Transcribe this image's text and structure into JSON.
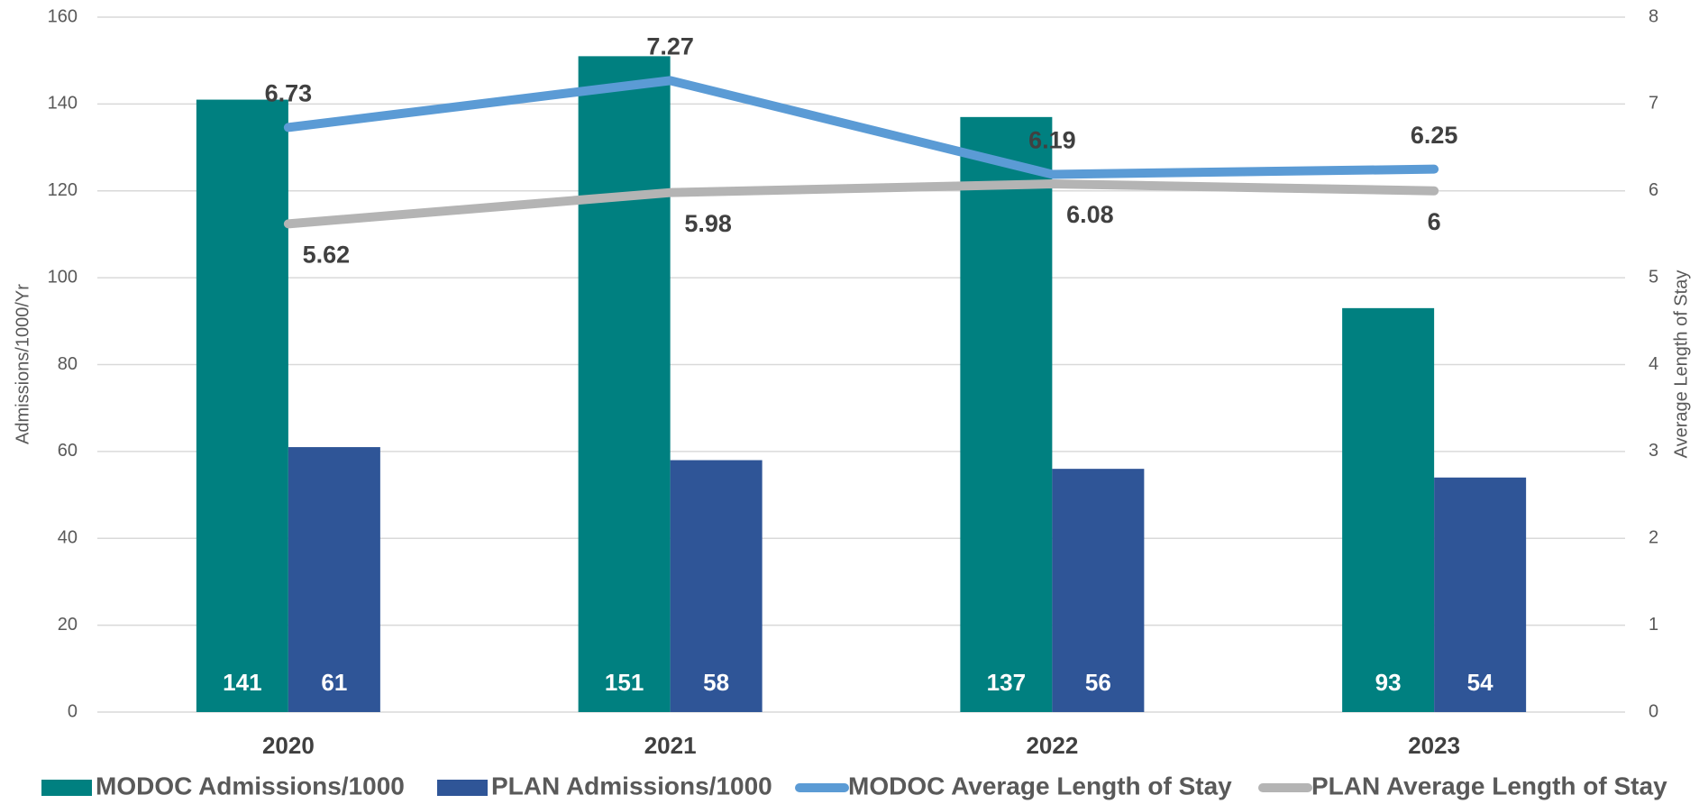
{
  "chart_data": {
    "type": "bar",
    "categories": [
      "2020",
      "2021",
      "2022",
      "2023"
    ],
    "series": [
      {
        "name": "MODOC Admissions/1000",
        "color": "#008080",
        "type": "bar",
        "values": [
          141,
          151,
          137,
          93
        ]
      },
      {
        "name": "PLAN Admissions/1000",
        "color": "#2f5597",
        "type": "bar",
        "values": [
          61,
          58,
          56,
          54
        ]
      },
      {
        "name": "MODOC Average Length of Stay",
        "color": "#5b9bd5",
        "type": "line",
        "axis": "y2",
        "values": [
          6.73,
          7.27,
          6.19,
          6.25
        ]
      },
      {
        "name": "PLAN Average Length of Stay",
        "color": "#b4b4b4",
        "type": "line",
        "axis": "y2",
        "values": [
          5.62,
          5.98,
          6.08,
          6
        ]
      }
    ],
    "ylabel": "Admissions/1000/Yr",
    "y2label": "Average Length of Stay",
    "ylim": [
      0,
      160
    ],
    "yticks": [
      0,
      20,
      40,
      60,
      80,
      100,
      120,
      140,
      160
    ],
    "y2lim": [
      0,
      8
    ],
    "y2ticks": [
      0,
      1,
      2,
      3,
      4,
      5,
      6,
      7,
      8
    ],
    "grid": true,
    "legend": "bottom"
  }
}
